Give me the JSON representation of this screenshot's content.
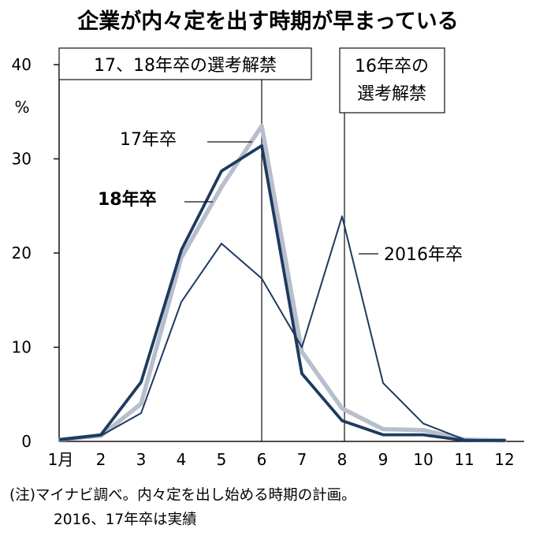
{
  "chart_data": {
    "type": "line",
    "title": "企業が内々定を出す時期が早まっている",
    "ylabel": "%",
    "ylim": [
      0,
      40
    ],
    "yticks": [
      "0",
      "10",
      "20",
      "30",
      "40"
    ],
    "categories": [
      "1月",
      "2",
      "3",
      "4",
      "5",
      "6",
      "7",
      "8",
      "9",
      "10",
      "11",
      "12"
    ],
    "series": [
      {
        "name": "17年卒",
        "color": "#b7bfcc",
        "values": [
          0.2,
          0.6,
          4.0,
          19.5,
          27.0,
          33.5,
          9.5,
          3.5,
          1.3,
          1.2,
          0.2,
          0.1
        ]
      },
      {
        "name": "18年卒",
        "color": "#1e3a5f",
        "values": [
          0.2,
          0.7,
          6.3,
          20.3,
          28.7,
          31.4,
          7.2,
          2.2,
          0.7,
          0.7,
          0.1,
          0.1
        ]
      },
      {
        "name": "2016年卒",
        "color": "#1e3a5f",
        "values": [
          0.1,
          0.6,
          3.0,
          14.8,
          21.0,
          17.3,
          10.0,
          23.9,
          6.2,
          1.9,
          0.2,
          0.1
        ]
      }
    ],
    "annotations": [
      {
        "text": "17、18年卒の選考解禁",
        "x": "6"
      },
      {
        "text": "16年卒の",
        "text2": "選考解禁",
        "x": "8"
      }
    ],
    "grid": false,
    "legend": "inline labels"
  },
  "note": {
    "line1": "(注)マイナビ調べ。内々定を出し始める時期の計画。",
    "line2": "2016、17年卒は実績"
  }
}
